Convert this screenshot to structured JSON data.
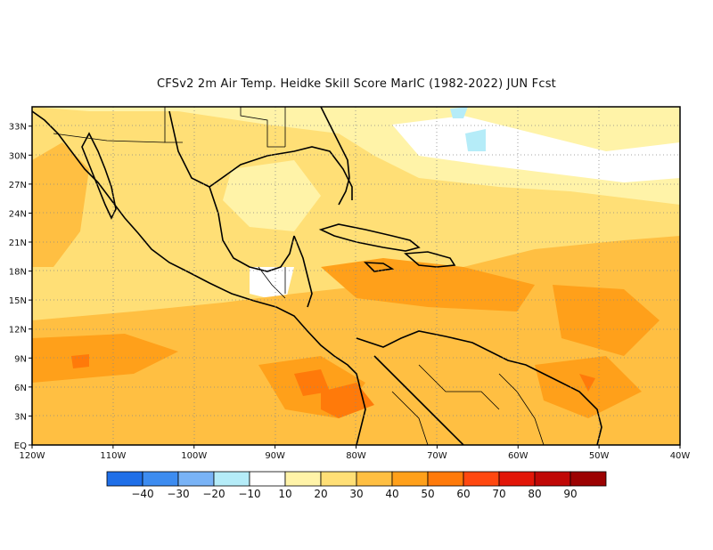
{
  "title": "CFSv2  2m Air Temp. Heidke Skill Score MarIC (1982-2022) JUN Fcst",
  "map": {
    "lon_range": [
      -120,
      -40
    ],
    "lat_range": [
      0,
      35
    ],
    "x_ticks": [
      {
        "lon": -120,
        "label": "120W"
      },
      {
        "lon": -110,
        "label": "110W"
      },
      {
        "lon": -100,
        "label": "100W"
      },
      {
        "lon": -90,
        "label": "90W"
      },
      {
        "lon": -80,
        "label": "80W"
      },
      {
        "lon": -70,
        "label": "70W"
      },
      {
        "lon": -60,
        "label": "60W"
      },
      {
        "lon": -50,
        "label": "50W"
      },
      {
        "lon": -40,
        "label": "40W"
      }
    ],
    "y_ticks": [
      {
        "lat": 0,
        "label": "EQ"
      },
      {
        "lat": 3,
        "label": "3N"
      },
      {
        "lat": 6,
        "label": "6N"
      },
      {
        "lat": 9,
        "label": "9N"
      },
      {
        "lat": 12,
        "label": "12N"
      },
      {
        "lat": 15,
        "label": "15N"
      },
      {
        "lat": 18,
        "label": "18N"
      },
      {
        "lat": 21,
        "label": "21N"
      },
      {
        "lat": 24,
        "label": "24N"
      },
      {
        "lat": 27,
        "label": "27N"
      },
      {
        "lat": 30,
        "label": "30N"
      },
      {
        "lat": 33,
        "label": "33N"
      }
    ],
    "gridlines": "dotted"
  },
  "colorbar": {
    "bins": [
      {
        "color": "#1f6fe8"
      },
      {
        "color": "#3d8cf0"
      },
      {
        "color": "#79b3f6"
      },
      {
        "color": "#b5ecf8"
      },
      {
        "color": "#ffffff"
      },
      {
        "color": "#fff3a8"
      },
      {
        "color": "#ffdf76"
      },
      {
        "color": "#ffbf42"
      },
      {
        "color": "#ffa01a"
      },
      {
        "color": "#ff7a0a"
      },
      {
        "color": "#ff4810"
      },
      {
        "color": "#e21608"
      },
      {
        "color": "#c00806"
      },
      {
        "color": "#9c0202"
      }
    ],
    "labels": [
      "-40",
      "-30",
      "-20",
      "-10",
      "10",
      "20",
      "30",
      "40",
      "50",
      "60",
      "70",
      "80",
      "90"
    ]
  },
  "regions": [
    {
      "color": "#ffdf76",
      "shape": "background"
    },
    {
      "color": "#ffbf42",
      "name": "east-pacific-band"
    },
    {
      "color": "#ffa01a",
      "name": "east-pacific-core"
    },
    {
      "color": "#ff7a0a",
      "name": "panama-hotspot"
    },
    {
      "color": "#ffa01a",
      "name": "caribbean-band"
    },
    {
      "color": "#ffbf42",
      "name": "atlantic-tropics"
    },
    {
      "color": "#ffffff",
      "name": "subtropical-atlantic-low"
    },
    {
      "color": "#b5ecf8",
      "name": "negative-patch"
    }
  ]
}
